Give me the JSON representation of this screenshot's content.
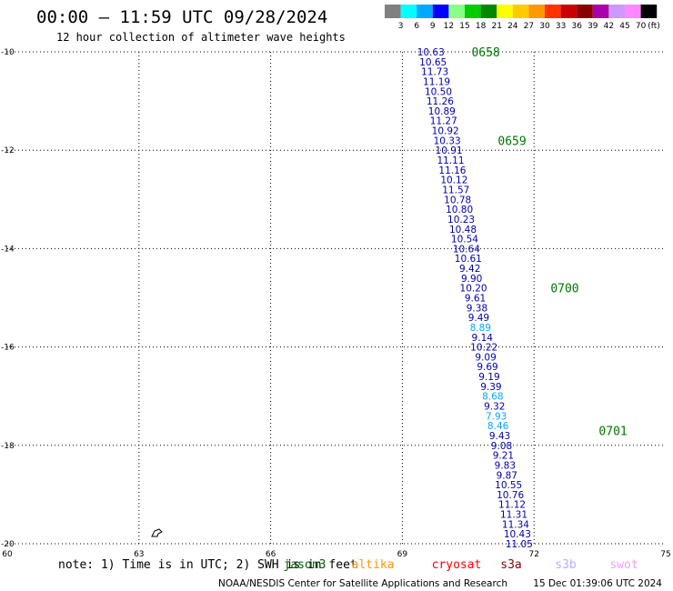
{
  "title": "00:00 – 11:59 UTC 09/28/2024",
  "subtitle": "12 hour collection of altimeter wave heights",
  "note": "note: 1) Time is in UTC; 2) SWH is in feet",
  "footer_left": "NOAA/NESDIS Center for Satellite Applications and Research",
  "footer_right": "15 Dec 01:39:06 UTC 2024",
  "legend": {
    "unit": "(ft)",
    "labels": [
      "3",
      "6",
      "9",
      "12",
      "15",
      "18",
      "21",
      "24",
      "27",
      "30",
      "33",
      "36",
      "39",
      "42",
      "45",
      "70"
    ],
    "colors": [
      "#808080",
      "#00ffff",
      "#00aaff",
      "#0000ff",
      "#88ff88",
      "#00cc00",
      "#008800",
      "#ffff00",
      "#ffcc00",
      "#ff9900",
      "#ff3300",
      "#cc0000",
      "#880000",
      "#aa00aa",
      "#cc99ff",
      "#ff88ff",
      "#000000"
    ]
  },
  "satellites": [
    {
      "name": "jason3",
      "color": "#006600"
    },
    {
      "name": "altika",
      "color": "#ff9900"
    },
    {
      "name": "cryosat",
      "color": "#ff0000"
    },
    {
      "name": "s3a",
      "color": "#880000"
    },
    {
      "name": "s3b",
      "color": "#bbaaff"
    },
    {
      "name": "swot",
      "color": "#ff99ff"
    }
  ],
  "chart_data": {
    "type": "scatter",
    "title": "00:00 – 11:59 UTC 09/28/2024",
    "subtitle": "12 hour collection of altimeter wave heights",
    "xlim": [
      60,
      75
    ],
    "ylim": [
      -20,
      -10
    ],
    "x_ticks": [
      "60",
      "63",
      "66",
      "69",
      "72",
      "75"
    ],
    "y_ticks": [
      "-10",
      "-12",
      "-14",
      "-16",
      "-18",
      "-20"
    ],
    "grid": true,
    "points": [
      {
        "lon": 69.65,
        "lat": -10.0,
        "v": "10.63"
      },
      {
        "lon": 69.7,
        "lat": -10.2,
        "v": "10.65"
      },
      {
        "lon": 69.74,
        "lat": -10.4,
        "v": "11.73"
      },
      {
        "lon": 69.78,
        "lat": -10.6,
        "v": "11.19"
      },
      {
        "lon": 69.82,
        "lat": -10.8,
        "v": "10.50"
      },
      {
        "lon": 69.86,
        "lat": -11.0,
        "v": "11.26"
      },
      {
        "lon": 69.9,
        "lat": -11.2,
        "v": "10.89"
      },
      {
        "lon": 69.94,
        "lat": -11.4,
        "v": "11.27"
      },
      {
        "lon": 69.98,
        "lat": -11.6,
        "v": "10.92"
      },
      {
        "lon": 70.02,
        "lat": -11.8,
        "v": "10.33"
      },
      {
        "lon": 70.06,
        "lat": -12.0,
        "v": "10.91"
      },
      {
        "lon": 70.1,
        "lat": -12.2,
        "v": "11.11"
      },
      {
        "lon": 70.14,
        "lat": -12.4,
        "v": "11.16"
      },
      {
        "lon": 70.18,
        "lat": -12.6,
        "v": "10.12"
      },
      {
        "lon": 70.22,
        "lat": -12.8,
        "v": "11.57"
      },
      {
        "lon": 70.26,
        "lat": -13.0,
        "v": "10.78"
      },
      {
        "lon": 70.3,
        "lat": -13.2,
        "v": "10.80"
      },
      {
        "lon": 70.34,
        "lat": -13.4,
        "v": "10.23"
      },
      {
        "lon": 70.38,
        "lat": -13.6,
        "v": "10.48"
      },
      {
        "lon": 70.42,
        "lat": -13.8,
        "v": "10.54"
      },
      {
        "lon": 70.46,
        "lat": -14.0,
        "v": "10.64"
      },
      {
        "lon": 70.5,
        "lat": -14.2,
        "v": "10.61"
      },
      {
        "lon": 70.54,
        "lat": -14.4,
        "v": "9.42"
      },
      {
        "lon": 70.58,
        "lat": -14.6,
        "v": "9.90"
      },
      {
        "lon": 70.62,
        "lat": -14.8,
        "v": "10.20"
      },
      {
        "lon": 70.66,
        "lat": -15.0,
        "v": "9.61"
      },
      {
        "lon": 70.7,
        "lat": -15.2,
        "v": "9.38"
      },
      {
        "lon": 70.74,
        "lat": -15.4,
        "v": "9.49"
      },
      {
        "lon": 70.78,
        "lat": -15.6,
        "v": "8.89"
      },
      {
        "lon": 70.82,
        "lat": -15.8,
        "v": "9.14"
      },
      {
        "lon": 70.86,
        "lat": -16.0,
        "v": "10.22"
      },
      {
        "lon": 70.9,
        "lat": -16.2,
        "v": "9.09"
      },
      {
        "lon": 70.94,
        "lat": -16.4,
        "v": "9.69"
      },
      {
        "lon": 70.98,
        "lat": -16.6,
        "v": "9.19"
      },
      {
        "lon": 71.02,
        "lat": -16.8,
        "v": "9.39"
      },
      {
        "lon": 71.06,
        "lat": -17.0,
        "v": "8.68"
      },
      {
        "lon": 71.1,
        "lat": -17.2,
        "v": "9.32"
      },
      {
        "lon": 71.14,
        "lat": -17.4,
        "v": "7.93"
      },
      {
        "lon": 71.18,
        "lat": -17.6,
        "v": "8.46"
      },
      {
        "lon": 71.22,
        "lat": -17.8,
        "v": "9.43"
      },
      {
        "lon": 71.26,
        "lat": -18.0,
        "v": "9.08"
      },
      {
        "lon": 71.3,
        "lat": -18.2,
        "v": "9.21"
      },
      {
        "lon": 71.34,
        "lat": -18.4,
        "v": "9.83"
      },
      {
        "lon": 71.38,
        "lat": -18.6,
        "v": "9.87"
      },
      {
        "lon": 71.42,
        "lat": -18.8,
        "v": "10.55"
      },
      {
        "lon": 71.46,
        "lat": -19.0,
        "v": "10.76"
      },
      {
        "lon": 71.5,
        "lat": -19.2,
        "v": "11.12"
      },
      {
        "lon": 71.54,
        "lat": -19.4,
        "v": "11.31"
      },
      {
        "lon": 71.58,
        "lat": -19.6,
        "v": "11.34"
      },
      {
        "lon": 71.62,
        "lat": -19.8,
        "v": "10.43"
      },
      {
        "lon": 71.66,
        "lat": -20.0,
        "v": "11.05"
      }
    ],
    "time_labels": [
      {
        "t": "0658",
        "lon": 70.9,
        "lat": -10.0
      },
      {
        "t": "0659",
        "lon": 71.5,
        "lat": -11.8
      },
      {
        "t": "0700",
        "lon": 72.7,
        "lat": -14.8
      },
      {
        "t": "0701",
        "lon": 73.8,
        "lat": -17.7
      }
    ]
  }
}
